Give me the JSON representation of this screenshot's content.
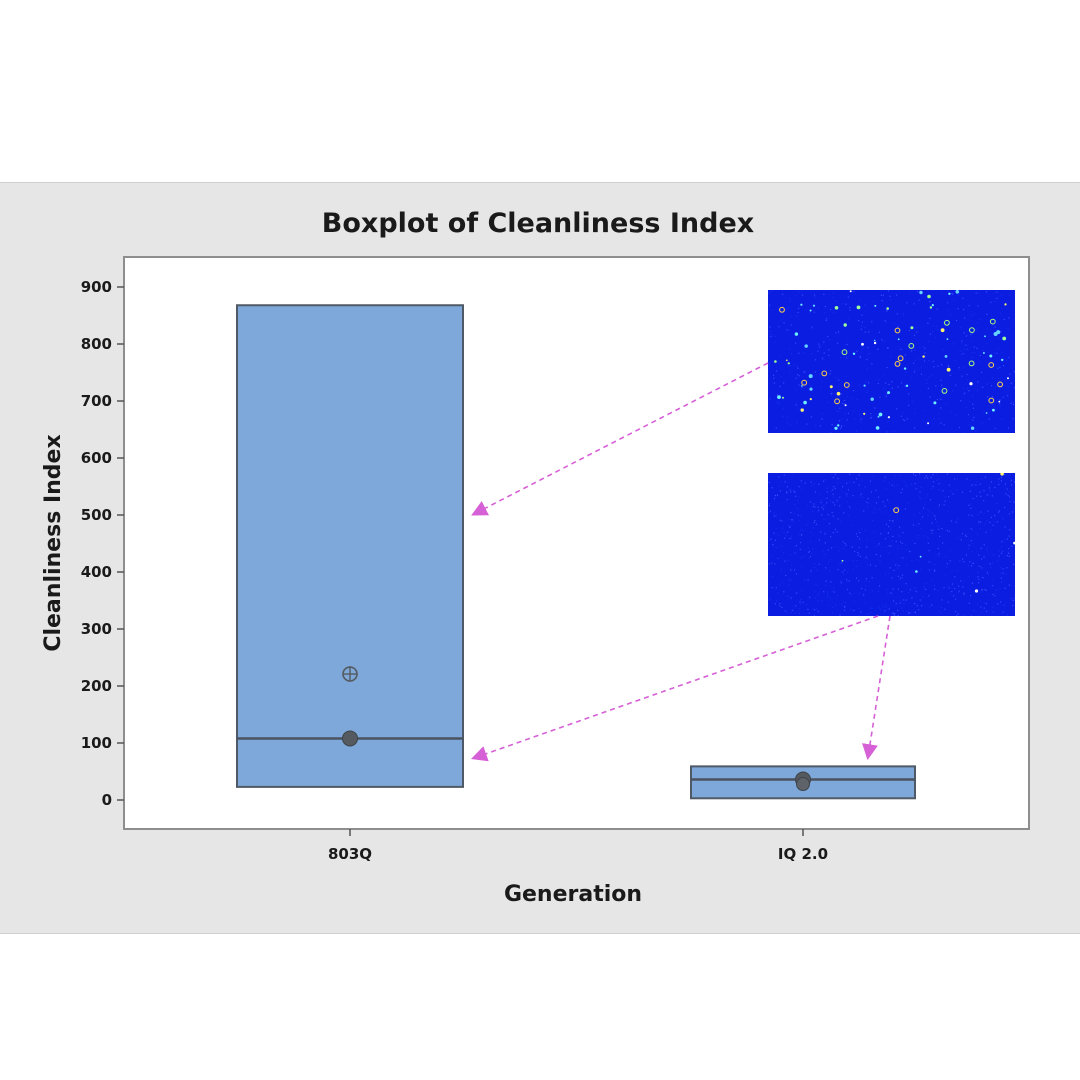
{
  "chart_data": {
    "type": "boxplot",
    "title": "Boxplot of Cleanliness Index",
    "xlabel": "Generation",
    "ylabel": "Cleanliness Index",
    "ylim": [
      -20,
      920
    ],
    "yticks": [
      0,
      100,
      200,
      300,
      400,
      500,
      600,
      700,
      800,
      900
    ],
    "categories": [
      "803Q",
      "IQ 2.0"
    ],
    "boxes": [
      {
        "category": "803Q",
        "q1": 23,
        "median": 108,
        "q3": 868,
        "mean": 221
      },
      {
        "category": "IQ 2.0",
        "q1": 3,
        "median": 36,
        "q3": 59,
        "mean": 35
      }
    ],
    "grid": false,
    "legend": "none",
    "colors": {
      "box_fill": "#7ea8d9",
      "box_edge": "#505a66",
      "arrow": "#d660d6",
      "inset_bg": "#0a1de0"
    },
    "annotations": [
      {
        "type": "image-inset",
        "description_icon": "particle-image-icon",
        "points_to": "803Q upper box"
      },
      {
        "type": "image-inset",
        "description_icon": "particle-image-icon",
        "points_to": "803Q median and IQ 2.0 box"
      }
    ]
  }
}
